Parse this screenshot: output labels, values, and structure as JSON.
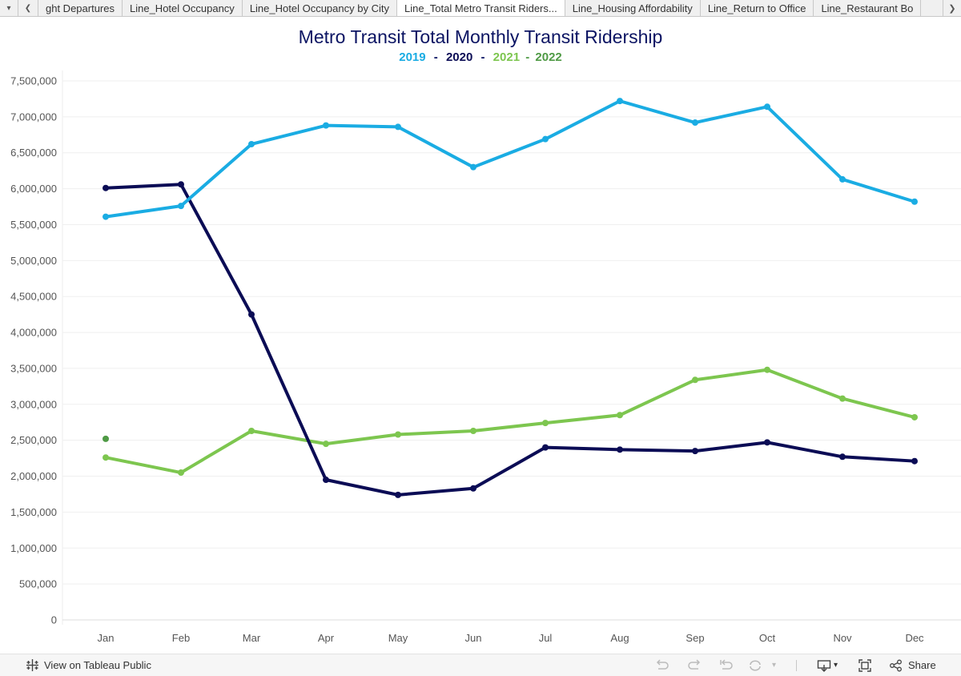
{
  "tabs": {
    "items": [
      {
        "label": "ght Departures",
        "active": false
      },
      {
        "label": "Line_Hotel Occupancy",
        "active": false
      },
      {
        "label": "Line_Hotel Occupancy by City",
        "active": false
      },
      {
        "label": "Line_Total Metro Transit Riders...",
        "active": true
      },
      {
        "label": "Line_Housing Affordability",
        "active": false
      },
      {
        "label": "Line_Return to Office",
        "active": false
      },
      {
        "label": "Line_Restaurant Bo",
        "active": false
      }
    ]
  },
  "footer": {
    "view_label": "View on Tableau Public",
    "share_label": "Share"
  },
  "colors": {
    "2019": "#1aace3",
    "2020": "#0b0c55",
    "2021": "#7dc64f",
    "2022": "#4f9a45",
    "title": "#0b1463"
  },
  "chart_data": {
    "type": "line",
    "title": "Metro Transit Total Monthly Transit Ridership",
    "subtitle": {
      "year_2019": "2019",
      "year_2020": "2020",
      "year_2021": "2021",
      "year_2022": "2022",
      "separator": "-"
    },
    "xlabel": "",
    "ylabel": "",
    "ylim": [
      0,
      7500000
    ],
    "categories": [
      "Jan",
      "Feb",
      "Mar",
      "Apr",
      "May",
      "Jun",
      "Jul",
      "Aug",
      "Sep",
      "Oct",
      "Nov",
      "Dec"
    ],
    "yticks": [
      {
        "value": 0,
        "label": "0"
      },
      {
        "value": 500000,
        "label": "500,000"
      },
      {
        "value": 1000000,
        "label": "1,000,000"
      },
      {
        "value": 1500000,
        "label": "1,500,000"
      },
      {
        "value": 2000000,
        "label": "2,000,000"
      },
      {
        "value": 2500000,
        "label": "2,500,000"
      },
      {
        "value": 3000000,
        "label": "3,000,000"
      },
      {
        "value": 3500000,
        "label": "3,500,000"
      },
      {
        "value": 4000000,
        "label": "4,000,000"
      },
      {
        "value": 4500000,
        "label": "4,500,000"
      },
      {
        "value": 5000000,
        "label": "5,000,000"
      },
      {
        "value": 5500000,
        "label": "5,500,000"
      },
      {
        "value": 6000000,
        "label": "6,000,000"
      },
      {
        "value": 6500000,
        "label": "6,500,000"
      },
      {
        "value": 7000000,
        "label": "7,000,000"
      },
      {
        "value": 7500000,
        "label": "7,500,000"
      }
    ],
    "grid": true,
    "legend": "top-center",
    "series": [
      {
        "name": "2019",
        "color": "#1aace3",
        "values": [
          5610000,
          5760000,
          6620000,
          6880000,
          6860000,
          6300000,
          6690000,
          7220000,
          6920000,
          7140000,
          6130000,
          5820000
        ]
      },
      {
        "name": "2020",
        "color": "#0b0c55",
        "values": [
          6010000,
          6060000,
          4250000,
          1950000,
          1740000,
          1830000,
          2400000,
          2370000,
          2350000,
          2470000,
          2270000,
          2210000
        ]
      },
      {
        "name": "2021",
        "color": "#7dc64f",
        "values": [
          2260000,
          2050000,
          2630000,
          2450000,
          2580000,
          2630000,
          2740000,
          2850000,
          3340000,
          3480000,
          3080000,
          2820000
        ]
      },
      {
        "name": "2022",
        "color": "#4f9a45",
        "values": [
          2520000,
          null,
          null,
          null,
          null,
          null,
          null,
          null,
          null,
          null,
          null,
          null
        ]
      }
    ]
  }
}
